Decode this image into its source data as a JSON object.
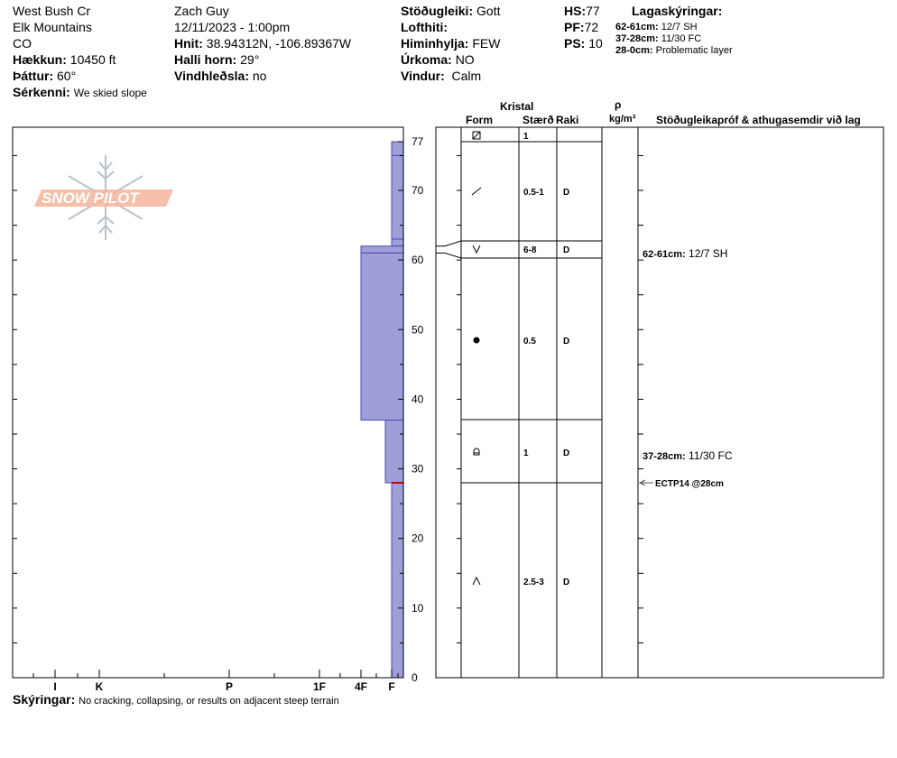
{
  "header": {
    "location": "West Bush Cr",
    "range": "Elk Mountains",
    "state": "CO",
    "elevation_label": "Hækkun:",
    "elevation": "10450 ft",
    "aspect_label": "Þáttur:",
    "aspect": "60°",
    "features_label": "Sérkenni:",
    "features": "We skied slope",
    "observer": "Zach Guy",
    "datetime": "12/11/2023 - 1:00pm",
    "coords_label": "Hnit:",
    "coords": "38.94312N, -106.89367W",
    "slope_label": "Halli horn:",
    "slope": "29°",
    "wind_loading_label": "Vindhleðsla:",
    "wind_loading": "no",
    "stability_label": "Stöðugleiki:",
    "stability": "Gott",
    "air_temp_label": "Lofthiti:",
    "air_temp": "",
    "sky_label": "Himinhylja:",
    "sky": "FEW",
    "precip_label": "Úrkoma:",
    "precip": "NO",
    "wind_label": "Vindur:",
    "wind": "Calm",
    "hs_label": "HS:",
    "hs": "77",
    "pf_label": "PF:",
    "pf": "72",
    "ps_label": "PS:",
    "ps": "10",
    "layer_notes_title": "Lagaskýringar:",
    "layer_notes": [
      {
        "range": "62-61cm:",
        "text": "12/7 SH"
      },
      {
        "range": "37-28cm:",
        "text": "11/30 FC"
      },
      {
        "range": "28-0cm:",
        "text": "Problematic layer"
      }
    ]
  },
  "logo_text": "SNOW PILOT",
  "columns": {
    "crystal": "Kristal",
    "form": "Form",
    "size": "Stærð",
    "moisture": "Raki",
    "density_symbol": "ρ",
    "density_unit": "kg/m³",
    "comments": "Stöðugleikapróf & athugasemdir við lag"
  },
  "footer": {
    "label": "Skýringar:",
    "text": "No cracking, collapsing, or results on adjacent steep terrain"
  },
  "colors": {
    "hardness_fill": "#9e9ed8",
    "hardness_stroke": "#4a4ab0",
    "test_marker": "#cc0000",
    "logo": "#f3b49a"
  },
  "chart_data": {
    "type": "snow-profile",
    "ylim": [
      0,
      77
    ],
    "y_ticks": [
      0,
      10,
      20,
      30,
      40,
      50,
      60,
      70,
      77
    ],
    "x_ticks": [
      "I",
      "K",
      "P",
      "1F",
      "4F",
      "F"
    ],
    "layers": [
      {
        "top": 77,
        "bottom": 75,
        "hardness": "F",
        "form_icon": "decomposing-icon",
        "size": "1",
        "moisture": ""
      },
      {
        "top": 75,
        "bottom": 63,
        "hardness": "F",
        "form_icon": "precip-particle-icon",
        "size": "0.5-1",
        "moisture": "D"
      },
      {
        "top": 63,
        "bottom": 62,
        "hardness": "F",
        "form_icon": "",
        "size": "",
        "moisture": ""
      },
      {
        "top": 62,
        "bottom": 61,
        "hardness": "4F",
        "form_icon": "surface-hoar-icon",
        "size": "6-8",
        "moisture": "D"
      },
      {
        "top": 61,
        "bottom": 37,
        "hardness": "4F",
        "form_icon": "rounded-grain-icon",
        "size": "0.5",
        "moisture": "D"
      },
      {
        "top": 37,
        "bottom": 28,
        "hardness": "4F-F",
        "form_icon": "faceted-crystal-icon",
        "size": "1",
        "moisture": "D"
      },
      {
        "top": 28,
        "bottom": 0,
        "hardness": "F",
        "form_icon": "depth-hoar-icon",
        "size": "2.5-3",
        "moisture": "D"
      }
    ],
    "layer_comments": [
      {
        "depth": 61.5,
        "range": "62-61cm:",
        "text": "12/7 SH"
      },
      {
        "depth": 28,
        "range": "37-28cm:",
        "text": "11/30 FC"
      }
    ],
    "tests": [
      {
        "depth": 28,
        "text": "ECTP14 @28cm"
      }
    ]
  }
}
